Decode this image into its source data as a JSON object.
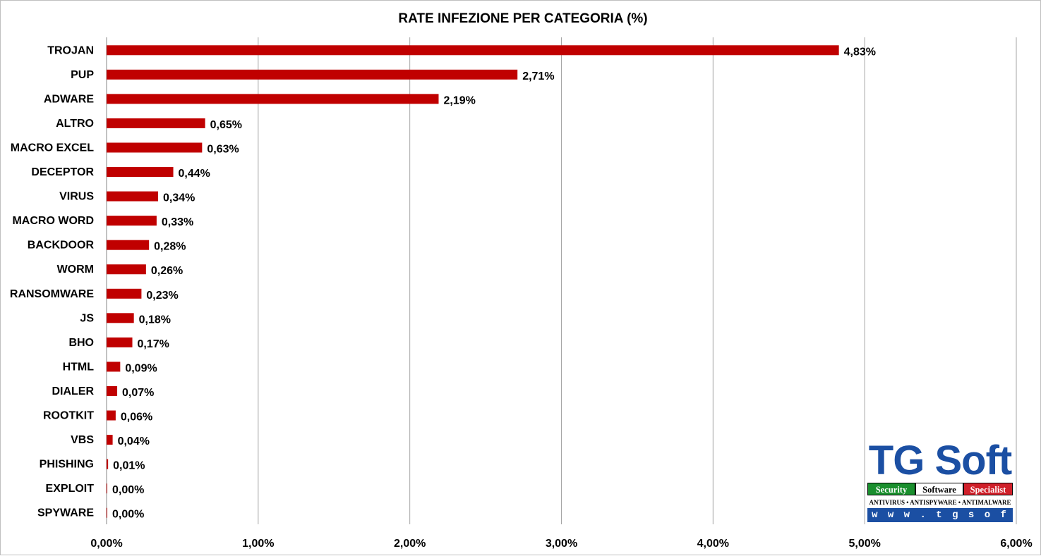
{
  "chart_data": {
    "type": "bar",
    "orientation": "horizontal",
    "title": "RATE  INFEZIONE PER CATEGORIA (%)",
    "categories": [
      "TROJAN",
      "PUP",
      "ADWARE",
      "ALTRO",
      "MACRO EXCEL",
      "DECEPTOR",
      "VIRUS",
      "MACRO WORD",
      "BACKDOOR",
      "WORM",
      "RANSOMWARE",
      "JS",
      "BHO",
      "HTML",
      "DIALER",
      "ROOTKIT",
      "VBS",
      "PHISHING",
      "EXPLOIT",
      "SPYWARE"
    ],
    "values": [
      4.83,
      2.71,
      2.19,
      0.65,
      0.63,
      0.44,
      0.34,
      0.33,
      0.28,
      0.26,
      0.23,
      0.18,
      0.17,
      0.09,
      0.07,
      0.06,
      0.04,
      0.01,
      0.0,
      0.0
    ],
    "value_labels": [
      "4,83%",
      "2,71%",
      "2,19%",
      "0,65%",
      "0,63%",
      "0,44%",
      "0,34%",
      "0,33%",
      "0,28%",
      "0,26%",
      "0,23%",
      "0,18%",
      "0,17%",
      "0,09%",
      "0,07%",
      "0,06%",
      "0,04%",
      "0,01%",
      "0,00%",
      "0,00%"
    ],
    "xlim": [
      0,
      6
    ],
    "x_ticks": [
      0,
      1,
      2,
      3,
      4,
      5,
      6
    ],
    "x_tick_labels": [
      "0,00%",
      "1,00%",
      "2,00%",
      "3,00%",
      "4,00%",
      "5,00%",
      "6,00%"
    ],
    "grid": "vertical",
    "legend": "none",
    "bar_color": "#c00000"
  },
  "logo": {
    "main": "TG Soft",
    "strip": [
      "Security",
      "Software",
      "Specialist"
    ],
    "tagline": "ANTIVIRUS • ANTISPYWARE • ANTIMALWARE",
    "url": "w w w . t g s o f t . i t"
  }
}
